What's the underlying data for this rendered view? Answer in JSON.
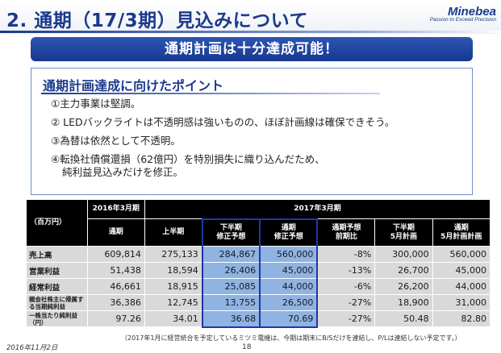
{
  "header": {
    "title": "2. 通期（17/3期）見込みについて",
    "logo": "Minebea",
    "logo_tagline": "Passion to Exceed Precision"
  },
  "banner": "通期計画は十分達成可能！",
  "points": {
    "heading": "通期計画達成に向けたポイント",
    "items": [
      "①主力事業は堅調。",
      "② LEDバックライトは不透明感は強いものの、ほぼ計画線は確保できそう。",
      "③為替は依然として不透明。",
      "④転換社債償還損（62億円）を特別損失に織り込んだため、",
      "純利益見込みだけを修正。"
    ]
  },
  "table": {
    "unit": "（百万円）",
    "group_2016": "2016年3月期",
    "group_2017": "2017年3月期",
    "columns": [
      "通期",
      "上半期",
      "下半期\n修正予想",
      "通期\n修正予想",
      "通期予想\n前期比",
      "下半期\n5月計画",
      "通期\n5月計画計画"
    ],
    "rows": [
      {
        "label": "売上高",
        "values": [
          "609,814",
          "275,133",
          "284,867",
          "560,000",
          "-8%",
          "300,000",
          "560,000"
        ]
      },
      {
        "label": "営業利益",
        "values": [
          "51,438",
          "18,594",
          "26,406",
          "45,000",
          "-13%",
          "26,700",
          "45,000"
        ]
      },
      {
        "label": "経常利益",
        "values": [
          "46,661",
          "18,915",
          "25,085",
          "44,000",
          "-6%",
          "26,200",
          "44,000"
        ]
      },
      {
        "label": "親会社株主に帰属する当期純利益",
        "values": [
          "36,386",
          "12,745",
          "13,755",
          "26,500",
          "-27%",
          "18,900",
          "31,000"
        ]
      },
      {
        "label": "一株当たり純利益（円）",
        "values": [
          "97.26",
          "34.01",
          "36.68",
          "70.69",
          "-27%",
          "50.48",
          "82.80"
        ]
      }
    ]
  },
  "note": "（2017年1月に経営統合を予定しているミツミ電機は、今期は期末にB/Sだけを連結し、P/Lは連結しない予定です。）",
  "footer": {
    "date": "2016年11月2日",
    "page": "18"
  },
  "colors": {
    "brand": "#1b3a8c",
    "banner": "#17388f",
    "highlight": "#8fb3e3",
    "highlight_border": "#2036a8",
    "header_cell": "#000000",
    "body_cell": "#d9d9d9"
  }
}
